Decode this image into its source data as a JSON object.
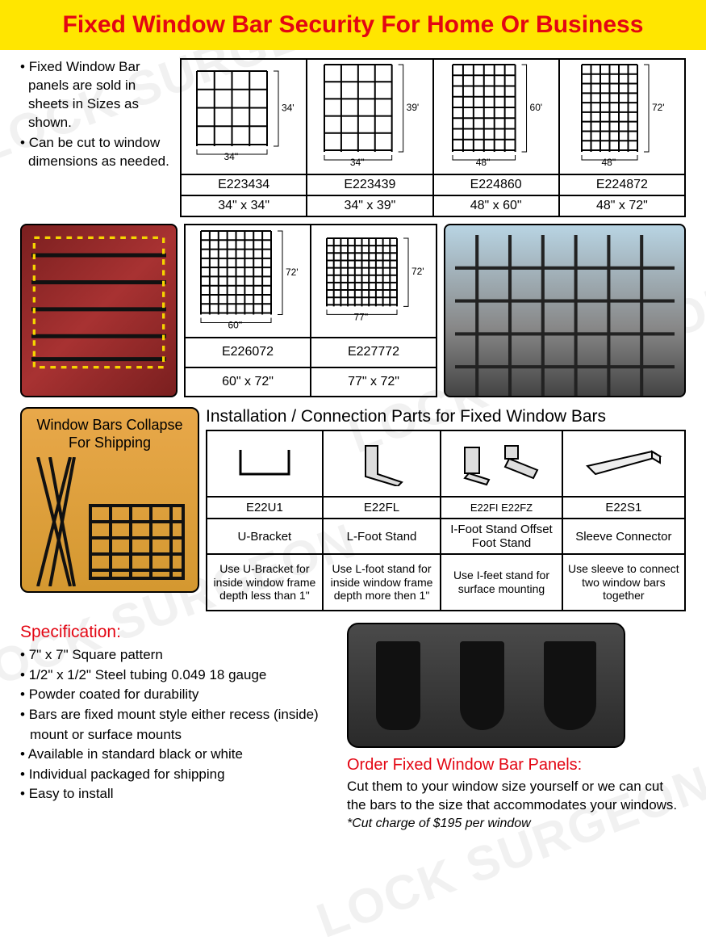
{
  "header": {
    "title": "Fixed Window Bar Security For Home Or Business"
  },
  "intro": {
    "line1": "Fixed Window Bar panels are sold in sheets in Sizes as shown.",
    "line2": "Can be cut to window dimensions as needed."
  },
  "sizes": [
    {
      "code": "E223434",
      "dims": "34\" x 34\"",
      "w": "34\"",
      "h": "34\"",
      "cols": 5,
      "rows": 5
    },
    {
      "code": "E223439",
      "dims": "34\" x 39\"",
      "w": "34\"",
      "h": "39\"",
      "cols": 5,
      "rows": 6
    },
    {
      "code": "E224860",
      "dims": "48\" x 60\"",
      "w": "48\"",
      "h": "60\"",
      "cols": 7,
      "rows": 9
    },
    {
      "code": "E224872",
      "dims": "48\" x 72\"",
      "w": "48\"",
      "h": "72\"",
      "cols": 7,
      "rows": 10
    },
    {
      "code": "E226072",
      "dims": "60\" x 72\"",
      "w": "60\"",
      "h": "72\"",
      "cols": 9,
      "rows": 10
    },
    {
      "code": "E227772",
      "dims": "77\" x 72\"",
      "w": "77\"",
      "h": "72\"",
      "cols": 11,
      "rows": 10
    }
  ],
  "collapse_label": "Window Bars Collapse For Shipping",
  "parts_heading": "Installation / Connection Parts for Fixed Window Bars",
  "parts": [
    {
      "code": "E22U1",
      "name": "U-Bracket",
      "desc": "Use U-Bracket for inside window frame depth less than 1\""
    },
    {
      "code": "E22FL",
      "name": "L-Foot Stand",
      "desc": "Use L-foot stand for inside window frame depth more then 1\""
    },
    {
      "code": "E22FI    E22FZ",
      "name": "I-Foot Stand Offset Foot Stand",
      "desc": "Use I-feet stand for surface mounting"
    },
    {
      "code": "E22S1",
      "name": "Sleeve Connector",
      "desc": "Use sleeve to connect two window bars together"
    }
  ],
  "spec": {
    "title": "Specification:",
    "items": [
      "7\" x 7\" Square pattern",
      "1/2\" x 1/2\" Steel tubing 0.049  18 gauge",
      "Powder coated for durability",
      "Bars are fixed mount style either recess (inside) mount or surface mounts",
      "Available in standard black or white",
      "Individual packaged for shipping",
      "Easy to install"
    ]
  },
  "order": {
    "title": "Order Fixed Window Bar Panels:",
    "text": "Cut them to your window size yourself or we can cut the bars to the size that accommodates your windows.",
    "note": "*Cut charge of $195 per window"
  },
  "colors": {
    "accent_red": "#e30613",
    "header_bg": "#ffe600",
    "text": "#000000"
  }
}
